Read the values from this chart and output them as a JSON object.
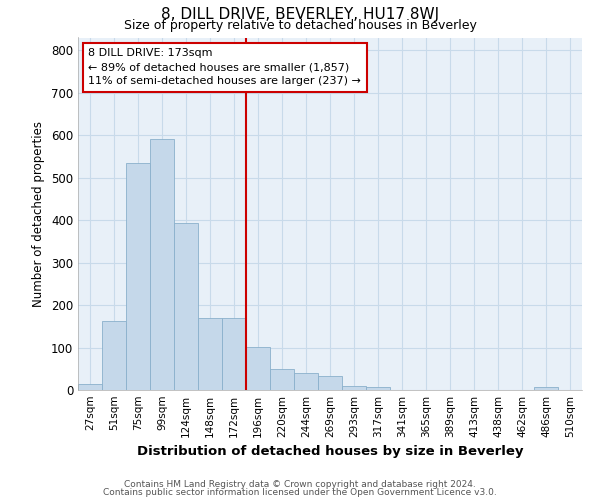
{
  "title": "8, DILL DRIVE, BEVERLEY, HU17 8WJ",
  "subtitle": "Size of property relative to detached houses in Beverley",
  "xlabel": "Distribution of detached houses by size in Beverley",
  "ylabel": "Number of detached properties",
  "footnote1": "Contains HM Land Registry data © Crown copyright and database right 2024.",
  "footnote2": "Contains public sector information licensed under the Open Government Licence v3.0.",
  "bar_color": "#c5d8ea",
  "bar_edge_color": "#8ab0cc",
  "grid_color": "#c8daea",
  "background_color": "#e8f0f8",
  "fig_background_color": "#ffffff",
  "annotation_box_color": "#cc0000",
  "annotation_line_color": "#cc0000",
  "categories": [
    "27sqm",
    "51sqm",
    "75sqm",
    "99sqm",
    "124sqm",
    "148sqm",
    "172sqm",
    "196sqm",
    "220sqm",
    "244sqm",
    "269sqm",
    "293sqm",
    "317sqm",
    "341sqm",
    "365sqm",
    "389sqm",
    "413sqm",
    "438sqm",
    "462sqm",
    "486sqm",
    "510sqm"
  ],
  "values": [
    15,
    163,
    535,
    590,
    393,
    170,
    170,
    101,
    50,
    40,
    33,
    10,
    8,
    0,
    0,
    0,
    0,
    0,
    0,
    8,
    0
  ],
  "property_bin_index": 6,
  "annotation_title": "8 DILL DRIVE: 173sqm",
  "annotation_line1": "← 89% of detached houses are smaller (1,857)",
  "annotation_line2": "11% of semi-detached houses are larger (237) →",
  "ylim": [
    0,
    830
  ],
  "yticks": [
    0,
    100,
    200,
    300,
    400,
    500,
    600,
    700,
    800
  ]
}
